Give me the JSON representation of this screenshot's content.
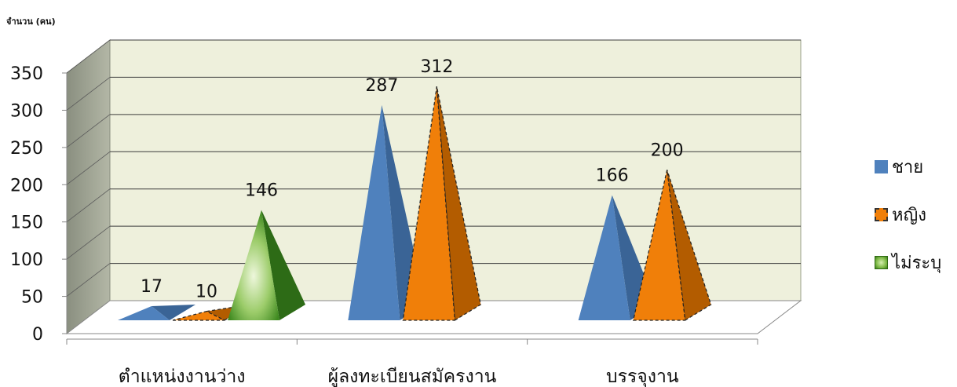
{
  "chart_data": {
    "type": "bar",
    "style": "3d-pyramid",
    "ylabel": "จำนวน (คน)",
    "xlabel": "",
    "ylim": [
      0,
      350
    ],
    "yticks": [
      0,
      50,
      100,
      150,
      200,
      250,
      300,
      350
    ],
    "categories": [
      "ตำแหน่งงานว่าง",
      "ผู้ลงทะเบียนสมัครงาน",
      "บรรจุงาน"
    ],
    "series": [
      {
        "name": "ชาย",
        "color": "#4f81bd",
        "values": [
          17,
          287,
          166
        ]
      },
      {
        "name": "หญิง",
        "color": "#f79646",
        "values": [
          10,
          312,
          200
        ]
      },
      {
        "name": "ไม่ระบุ",
        "color": "#4e9a2e",
        "values": [
          146,
          null,
          null
        ]
      }
    ],
    "grid": true,
    "legend_position": "right"
  }
}
